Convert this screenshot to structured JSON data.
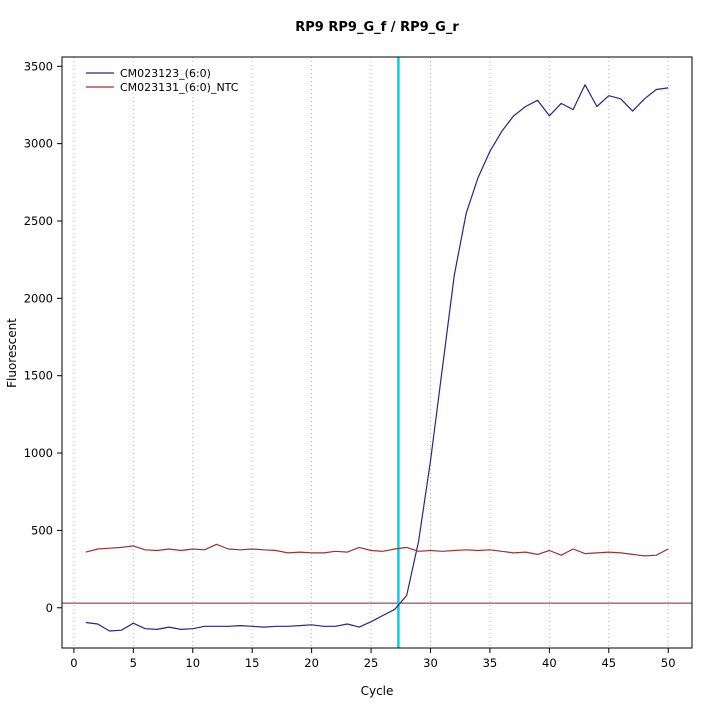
{
  "chart_data": {
    "type": "line",
    "title": "RP9  RP9_G_f / RP9_G_r",
    "xlabel": "Cycle",
    "ylabel": "Fluorescent",
    "xlim": [
      -1,
      52
    ],
    "ylim": [
      -260,
      3560
    ],
    "x_ticks": [
      0,
      5,
      10,
      15,
      20,
      25,
      30,
      35,
      40,
      45,
      50
    ],
    "y_ticks": [
      0,
      500,
      1000,
      1500,
      2000,
      2500,
      3000,
      3500
    ],
    "grid": "vertical-dotted",
    "legend_position": "top-left",
    "threshold_line_y": 30,
    "ct_line_x": 27.3,
    "colors": {
      "series1": "#26268c",
      "series2": "#9e3232",
      "threshold": "#8b2323",
      "ct_line": "#00d2e6",
      "grid": "#b8b8b8",
      "axis": "#000000"
    },
    "x": [
      1,
      2,
      3,
      4,
      5,
      6,
      7,
      8,
      9,
      10,
      11,
      12,
      13,
      14,
      15,
      16,
      17,
      18,
      19,
      20,
      21,
      22,
      23,
      24,
      25,
      26,
      27,
      28,
      29,
      30,
      31,
      32,
      33,
      34,
      35,
      36,
      37,
      38,
      39,
      40,
      41,
      42,
      43,
      44,
      45,
      46,
      47,
      48,
      49,
      50
    ],
    "series": [
      {
        "name": "CM023123_(6:0)",
        "color": "#26268c",
        "values": [
          -95,
          -105,
          -150,
          -145,
          -100,
          -135,
          -140,
          -125,
          -140,
          -135,
          -120,
          -120,
          -120,
          -115,
          -120,
          -125,
          -120,
          -120,
          -115,
          -110,
          -120,
          -120,
          -105,
          -125,
          -90,
          -50,
          -10,
          80,
          430,
          950,
          1550,
          2150,
          2550,
          2780,
          2950,
          3080,
          3180,
          3240,
          3280,
          3180,
          3260,
          3220,
          3380,
          3240,
          3310,
          3290,
          3210,
          3290,
          3350,
          3360
        ]
      },
      {
        "name": "CM023131_(6:0)_NTC",
        "color": "#9e3232",
        "values": [
          360,
          380,
          385,
          390,
          400,
          375,
          370,
          380,
          370,
          380,
          375,
          410,
          380,
          375,
          380,
          375,
          370,
          355,
          360,
          355,
          355,
          365,
          360,
          390,
          370,
          365,
          380,
          390,
          365,
          370,
          365,
          370,
          375,
          370,
          375,
          365,
          355,
          360,
          345,
          370,
          340,
          380,
          350,
          355,
          360,
          355,
          345,
          335,
          340,
          380
        ]
      }
    ]
  }
}
